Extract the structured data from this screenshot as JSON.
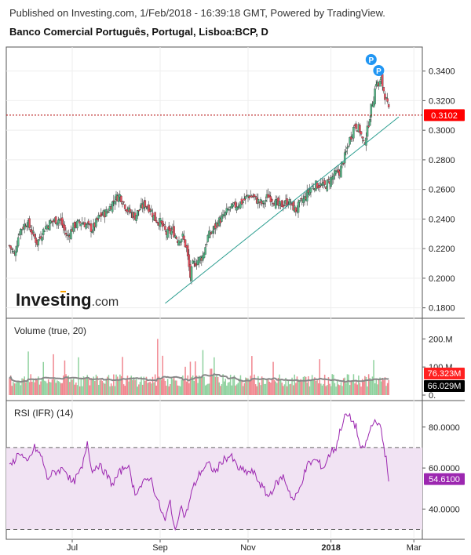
{
  "header": {
    "published": "Published on Investing.com, 1/Feb/2018 - 16:39:18 GMT, Powered by TradingView.",
    "symbol": "Banco Comercial Português, Portugal, Lisboa:BCP, D"
  },
  "watermark": {
    "brand": "Investing",
    "suffix": ".com"
  },
  "colors": {
    "up": "#53b987",
    "down": "#eb4d5c",
    "trend": "#2a9d8f",
    "rsi": "#9c27b0",
    "rsi_band": "#f1e3f3",
    "vol_ma": "#888888",
    "price_badge": "#ff0000",
    "vol_badge_up": "#ff2020",
    "vol_badge_ma": "#000000",
    "rsi_badge": "#9c27b0",
    "marker": "#2196f3"
  },
  "chart_data": [
    {
      "type": "candlestick",
      "title": "Banco Comercial Português, Portugal, Lisboa:BCP, D",
      "y_ticks": [
        "0.3400",
        "0.3200",
        "0.3000",
        "0.2800",
        "0.2600",
        "0.2400",
        "0.2200",
        "0.2000",
        "0.1800"
      ],
      "ylim": [
        0.174,
        0.352
      ],
      "last_price": "0.3102",
      "last_price_value": 0.3102,
      "markers": [
        "P",
        "P"
      ],
      "trendline": {
        "from": [
          "2017-08-31",
          0.183
        ],
        "to": [
          "2018-01-31",
          0.309
        ]
      },
      "path": [
        [
          0,
          0.222
        ],
        [
          4,
          0.216
        ],
        [
          8,
          0.232
        ],
        [
          14,
          0.238
        ],
        [
          22,
          0.224
        ],
        [
          28,
          0.234
        ],
        [
          33,
          0.238
        ],
        [
          40,
          0.24
        ],
        [
          46,
          0.228
        ],
        [
          52,
          0.236
        ],
        [
          58,
          0.238
        ],
        [
          66,
          0.233
        ],
        [
          72,
          0.242
        ],
        [
          78,
          0.245
        ],
        [
          84,
          0.254
        ],
        [
          88,
          0.256
        ],
        [
          94,
          0.246
        ],
        [
          100,
          0.242
        ],
        [
          104,
          0.247
        ],
        [
          108,
          0.25
        ],
        [
          112,
          0.247
        ],
        [
          116,
          0.24
        ],
        [
          120,
          0.238
        ],
        [
          125,
          0.23
        ],
        [
          130,
          0.232
        ],
        [
          134,
          0.226
        ],
        [
          138,
          0.228
        ],
        [
          141,
          0.22
        ],
        [
          144,
          0.201
        ],
        [
          146,
          0.209
        ],
        [
          150,
          0.212
        ],
        [
          154,
          0.215
        ],
        [
          158,
          0.228
        ],
        [
          162,
          0.232
        ],
        [
          166,
          0.238
        ],
        [
          170,
          0.241
        ],
        [
          174,
          0.246
        ],
        [
          178,
          0.248
        ],
        [
          182,
          0.25
        ],
        [
          186,
          0.252
        ],
        [
          190,
          0.256
        ],
        [
          194,
          0.255
        ],
        [
          198,
          0.252
        ],
        [
          202,
          0.25
        ],
        [
          206,
          0.256
        ],
        [
          210,
          0.253
        ],
        [
          214,
          0.249
        ],
        [
          218,
          0.25
        ],
        [
          222,
          0.252
        ],
        [
          226,
          0.248
        ],
        [
          228,
          0.246
        ],
        [
          231,
          0.25
        ],
        [
          235,
          0.254
        ],
        [
          239,
          0.26
        ],
        [
          243,
          0.263
        ],
        [
          247,
          0.263
        ],
        [
          251,
          0.262
        ],
        [
          255,
          0.266
        ],
        [
          259,
          0.27
        ],
        [
          263,
          0.272
        ],
        [
          267,
          0.282
        ],
        [
          271,
          0.294
        ],
        [
          275,
          0.304
        ],
        [
          279,
          0.3
        ],
        [
          282,
          0.29
        ],
        [
          285,
          0.3
        ],
        [
          288,
          0.315
        ],
        [
          290,
          0.322
        ],
        [
          292,
          0.333
        ],
        [
          294,
          0.33
        ],
        [
          296,
          0.334
        ],
        [
          298,
          0.327
        ],
        [
          300,
          0.32
        ],
        [
          302,
          0.313
        ]
      ]
    },
    {
      "type": "bar",
      "title": "Volume (true, 20)",
      "y_ticks": [
        "200.M",
        "100.M",
        "0."
      ],
      "badges": [
        "76.323M",
        "66.029M"
      ]
    },
    {
      "type": "line",
      "title": "RSI (IFR) (14)",
      "y_ticks": [
        "80.0000",
        "60.0000",
        "40.0000"
      ],
      "ylim": [
        26,
        91
      ],
      "band": [
        30,
        70
      ],
      "last_value": "54.6100",
      "x_ticks": [
        "Jul",
        "Sep",
        "Nov",
        "2018",
        "Mar"
      ],
      "path": [
        [
          0,
          60
        ],
        [
          8,
          68
        ],
        [
          14,
          62
        ],
        [
          20,
          70
        ],
        [
          26,
          65
        ],
        [
          30,
          55
        ],
        [
          36,
          58
        ],
        [
          44,
          60
        ],
        [
          50,
          52
        ],
        [
          58,
          60
        ],
        [
          62,
          73
        ],
        [
          66,
          58
        ],
        [
          70,
          62
        ],
        [
          76,
          58
        ],
        [
          82,
          52
        ],
        [
          88,
          58
        ],
        [
          94,
          62
        ],
        [
          100,
          48
        ],
        [
          106,
          52
        ],
        [
          112,
          56
        ],
        [
          118,
          44
        ],
        [
          124,
          34
        ],
        [
          128,
          44
        ],
        [
          132,
          28
        ],
        [
          136,
          42
        ],
        [
          140,
          36
        ],
        [
          146,
          50
        ],
        [
          152,
          58
        ],
        [
          158,
          62
        ],
        [
          164,
          58
        ],
        [
          170,
          64
        ],
        [
          176,
          66
        ],
        [
          182,
          60
        ],
        [
          188,
          58
        ],
        [
          194,
          58
        ],
        [
          200,
          52
        ],
        [
          206,
          46
        ],
        [
          212,
          52
        ],
        [
          218,
          56
        ],
        [
          222,
          50
        ],
        [
          226,
          44
        ],
        [
          230,
          48
        ],
        [
          234,
          56
        ],
        [
          238,
          62
        ],
        [
          244,
          64
        ],
        [
          250,
          60
        ],
        [
          256,
          68
        ],
        [
          260,
          70
        ],
        [
          264,
          80
        ],
        [
          268,
          86
        ],
        [
          272,
          84
        ],
        [
          276,
          80
        ],
        [
          280,
          68
        ],
        [
          284,
          72
        ],
        [
          288,
          80
        ],
        [
          292,
          84
        ],
        [
          296,
          78
        ],
        [
          300,
          64
        ],
        [
          302,
          55
        ]
      ]
    }
  ]
}
